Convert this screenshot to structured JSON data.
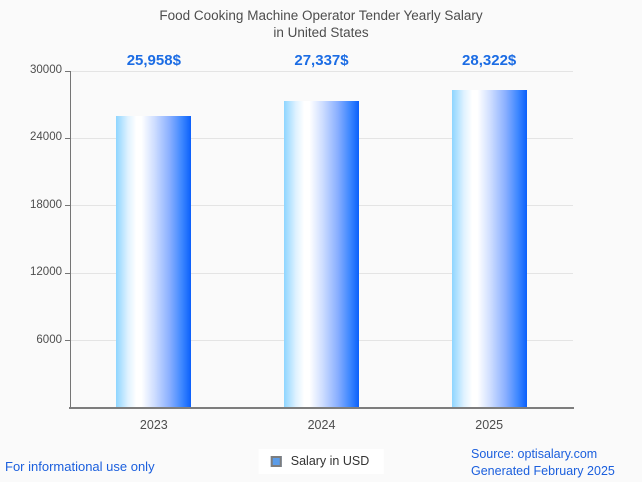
{
  "title": {
    "line1": "Food Cooking Machine Operator Tender Yearly Salary",
    "line2": "in United States"
  },
  "chart_data": {
    "type": "bar",
    "categories": [
      "2023",
      "2024",
      "2025"
    ],
    "series": [
      {
        "name": "Salary in USD",
        "values": [
          25958,
          27337,
          28322
        ]
      }
    ],
    "bar_labels": [
      "25,958$",
      "27,337$",
      "28,322$"
    ],
    "title": "Food Cooking Machine Operator Tender Yearly Salary in United States",
    "xlabel": "",
    "ylabel": "",
    "ylim": [
      0,
      30000
    ],
    "yticks": [
      6000,
      12000,
      18000,
      24000,
      30000
    ],
    "grid": "horizontal",
    "legend_position": "bottom-center"
  },
  "legend": {
    "label": "Salary in USD"
  },
  "footer": {
    "left": "For informational use only",
    "source": "Source: optisalary.com",
    "generated": "Generated February 2025"
  },
  "colors": {
    "background": "#fafafa",
    "title_text": "#4d4d4d",
    "axis_text": "#4d4d4d",
    "accent_blue": "#1b6ce4",
    "footer_blue": "#1b5fdd",
    "gridline": "#e4e4e4",
    "axis_line": "#757575",
    "bar_gradient": [
      "#8ed5ff",
      "#ffffff",
      "#ccdcff",
      "#88aeff",
      "#0b60fb"
    ],
    "legend_marker_fill": "#5b9ce8",
    "legend_marker_border": "#7d7d7d"
  }
}
